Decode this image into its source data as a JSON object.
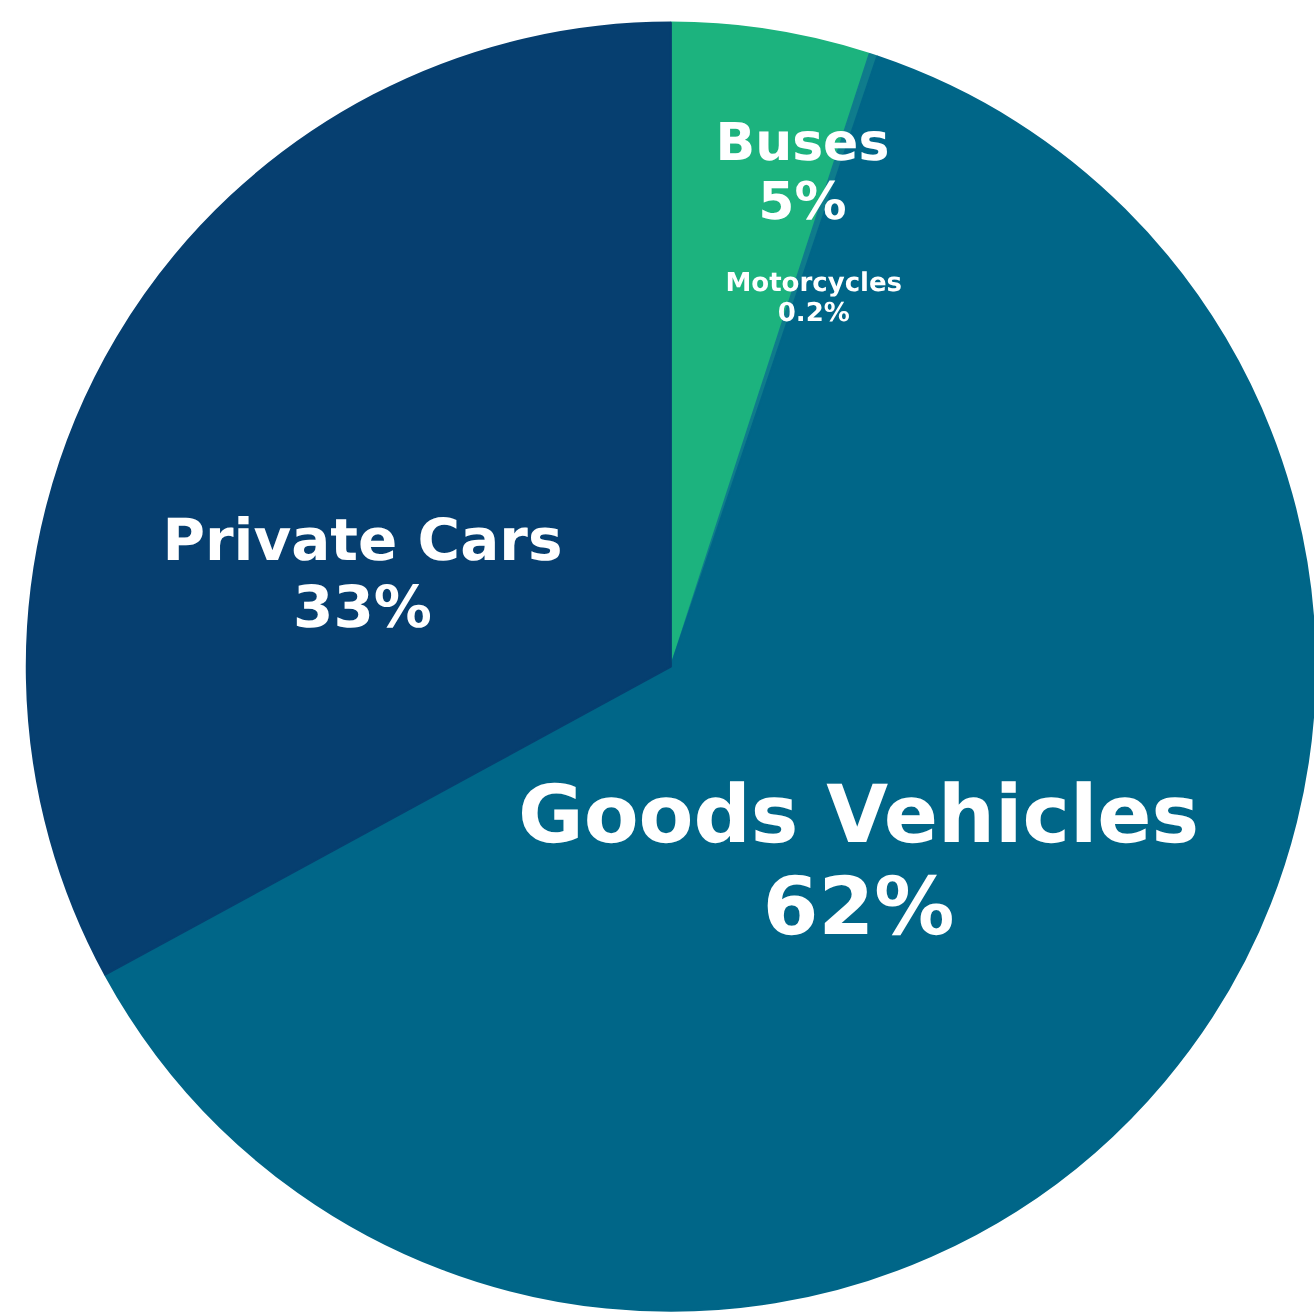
{
  "chart_data": {
    "type": "pie",
    "categories": [
      "Buses",
      "Motorcycles",
      "Goods Vehicles",
      "Private Cars"
    ],
    "values": [
      5,
      0.2,
      62,
      33
    ],
    "value_labels": [
      "5%",
      "0.2%",
      "62%",
      "33%"
    ],
    "colors": [
      "#1cb37e",
      "#0f7c8c",
      "#006688",
      "#063f70"
    ]
  }
}
